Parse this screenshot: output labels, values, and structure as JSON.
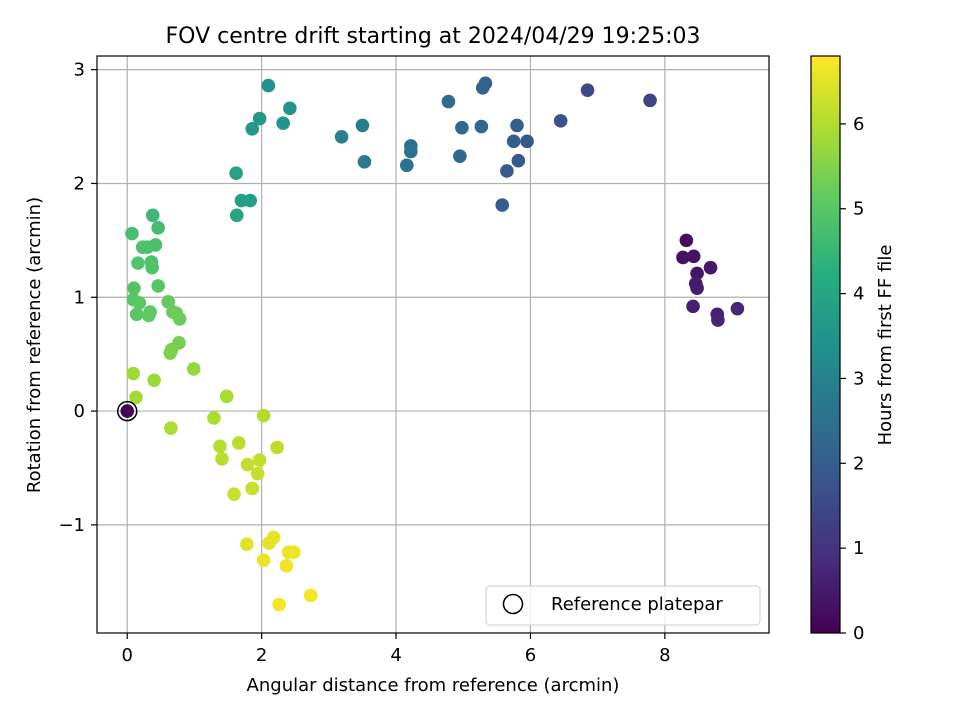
{
  "chart_data": {
    "type": "scatter",
    "title": "FOV centre drift starting at 2024/04/29 19:25:03",
    "xlabel": "Angular distance from reference (arcmin)",
    "ylabel": "Rotation from reference (arcmin)",
    "xlim": [
      -0.45,
      9.55
    ],
    "ylim": [
      -1.95,
      3.12
    ],
    "xticks": [
      0,
      2,
      4,
      6,
      8
    ],
    "xtick_labels": [
      "0",
      "2",
      "4",
      "6",
      "8"
    ],
    "yticks": [
      -1,
      0,
      1,
      2,
      3
    ],
    "ytick_labels": [
      "−1",
      "0",
      "1",
      "2",
      "3"
    ],
    "grid": true,
    "legend": {
      "placement": "lower-right",
      "entries": [
        "Reference platepar"
      ]
    },
    "colorbar": {
      "label": "Hours from first FF file",
      "range": [
        0,
        6.8
      ],
      "ticks": [
        0,
        1,
        2,
        3,
        4,
        5,
        6
      ],
      "tick_labels": [
        "0",
        "1",
        "2",
        "3",
        "4",
        "5",
        "6"
      ],
      "colormap": "viridis"
    },
    "reference_point": {
      "x": 0,
      "y": 0,
      "hours": 0.05
    },
    "points": [
      {
        "x": 8.32,
        "y": 1.5,
        "h": 0.25
      },
      {
        "x": 8.27,
        "y": 1.35,
        "h": 0.3
      },
      {
        "x": 8.43,
        "y": 1.36,
        "h": 0.35
      },
      {
        "x": 8.48,
        "y": 1.21,
        "h": 0.4
      },
      {
        "x": 8.68,
        "y": 1.26,
        "h": 0.45
      },
      {
        "x": 8.46,
        "y": 1.12,
        "h": 0.5
      },
      {
        "x": 8.48,
        "y": 1.08,
        "h": 0.55
      },
      {
        "x": 8.42,
        "y": 0.92,
        "h": 0.6
      },
      {
        "x": 8.78,
        "y": 0.85,
        "h": 0.65
      },
      {
        "x": 8.79,
        "y": 0.8,
        "h": 0.7
      },
      {
        "x": 9.08,
        "y": 0.9,
        "h": 0.75
      },
      {
        "x": 7.78,
        "y": 2.73,
        "h": 1.35
      },
      {
        "x": 6.85,
        "y": 2.82,
        "h": 1.5
      },
      {
        "x": 6.45,
        "y": 2.55,
        "h": 1.7
      },
      {
        "x": 5.95,
        "y": 2.37,
        "h": 1.85
      },
      {
        "x": 5.82,
        "y": 2.2,
        "h": 1.9
      },
      {
        "x": 5.65,
        "y": 2.11,
        "h": 1.95
      },
      {
        "x": 5.58,
        "y": 1.81,
        "h": 2.0
      },
      {
        "x": 5.75,
        "y": 2.37,
        "h": 2.05
      },
      {
        "x": 5.8,
        "y": 2.51,
        "h": 2.1
      },
      {
        "x": 5.33,
        "y": 2.88,
        "h": 2.15
      },
      {
        "x": 5.29,
        "y": 2.84,
        "h": 2.2
      },
      {
        "x": 5.27,
        "y": 2.5,
        "h": 2.25
      },
      {
        "x": 4.98,
        "y": 2.49,
        "h": 2.3
      },
      {
        "x": 4.95,
        "y": 2.24,
        "h": 2.35
      },
      {
        "x": 4.78,
        "y": 2.72,
        "h": 2.4
      },
      {
        "x": 4.22,
        "y": 2.33,
        "h": 2.5
      },
      {
        "x": 4.22,
        "y": 2.28,
        "h": 2.55
      },
      {
        "x": 4.16,
        "y": 2.16,
        "h": 2.6
      },
      {
        "x": 3.53,
        "y": 2.19,
        "h": 2.8
      },
      {
        "x": 3.5,
        "y": 2.51,
        "h": 2.85
      },
      {
        "x": 3.19,
        "y": 2.41,
        "h": 2.95
      },
      {
        "x": 2.1,
        "y": 2.86,
        "h": 3.45
      },
      {
        "x": 2.42,
        "y": 2.66,
        "h": 3.5
      },
      {
        "x": 2.32,
        "y": 2.53,
        "h": 3.55
      },
      {
        "x": 1.97,
        "y": 2.57,
        "h": 3.6
      },
      {
        "x": 1.86,
        "y": 2.48,
        "h": 3.65
      },
      {
        "x": 1.83,
        "y": 1.85,
        "h": 3.8
      },
      {
        "x": 1.7,
        "y": 1.85,
        "h": 3.85
      },
      {
        "x": 1.62,
        "y": 2.09,
        "h": 3.9
      },
      {
        "x": 1.63,
        "y": 1.72,
        "h": 3.95
      },
      {
        "x": 0.38,
        "y": 1.72,
        "h": 4.6
      },
      {
        "x": 0.46,
        "y": 1.61,
        "h": 4.7
      },
      {
        "x": 0.07,
        "y": 1.56,
        "h": 4.75
      },
      {
        "x": 0.42,
        "y": 1.46,
        "h": 4.8
      },
      {
        "x": 0.3,
        "y": 1.44,
        "h": 4.8
      },
      {
        "x": 0.23,
        "y": 1.44,
        "h": 4.85
      },
      {
        "x": 0.36,
        "y": 1.31,
        "h": 4.85
      },
      {
        "x": 0.37,
        "y": 1.26,
        "h": 4.9
      },
      {
        "x": 0.16,
        "y": 1.3,
        "h": 4.9
      },
      {
        "x": 0.1,
        "y": 1.08,
        "h": 4.95
      },
      {
        "x": 0.46,
        "y": 1.1,
        "h": 5.0
      },
      {
        "x": 0.09,
        "y": 0.98,
        "h": 5.0
      },
      {
        "x": 0.18,
        "y": 0.95,
        "h": 5.05
      },
      {
        "x": 0.14,
        "y": 0.85,
        "h": 5.05
      },
      {
        "x": 0.34,
        "y": 0.87,
        "h": 5.1
      },
      {
        "x": 0.32,
        "y": 0.84,
        "h": 5.1
      },
      {
        "x": 0.61,
        "y": 0.96,
        "h": 5.15
      },
      {
        "x": 0.68,
        "y": 0.87,
        "h": 5.2
      },
      {
        "x": 0.78,
        "y": 0.81,
        "h": 5.25
      },
      {
        "x": 0.73,
        "y": 0.86,
        "h": 5.25
      },
      {
        "x": 0.77,
        "y": 0.6,
        "h": 5.35
      },
      {
        "x": 0.66,
        "y": 0.54,
        "h": 5.4
      },
      {
        "x": 0.64,
        "y": 0.51,
        "h": 5.45
      },
      {
        "x": 0.99,
        "y": 0.37,
        "h": 5.7
      },
      {
        "x": 0.4,
        "y": 0.27,
        "h": 5.75
      },
      {
        "x": 0.09,
        "y": 0.33,
        "h": 5.8
      },
      {
        "x": 0.13,
        "y": 0.12,
        "h": 5.85
      },
      {
        "x": 1.48,
        "y": 0.13,
        "h": 5.9
      },
      {
        "x": 1.29,
        "y": -0.06,
        "h": 5.95
      },
      {
        "x": 0.65,
        "y": -0.15,
        "h": 5.95
      },
      {
        "x": 2.03,
        "y": -0.04,
        "h": 6.0
      },
      {
        "x": 1.38,
        "y": -0.31,
        "h": 6.05
      },
      {
        "x": 1.41,
        "y": -0.42,
        "h": 6.05
      },
      {
        "x": 1.66,
        "y": -0.28,
        "h": 6.1
      },
      {
        "x": 2.23,
        "y": -0.32,
        "h": 6.1
      },
      {
        "x": 1.97,
        "y": -0.43,
        "h": 6.15
      },
      {
        "x": 1.79,
        "y": -0.47,
        "h": 6.15
      },
      {
        "x": 1.94,
        "y": -0.55,
        "h": 6.2
      },
      {
        "x": 1.86,
        "y": -0.68,
        "h": 6.2
      },
      {
        "x": 1.59,
        "y": -0.73,
        "h": 6.25
      },
      {
        "x": 1.78,
        "y": -1.17,
        "h": 6.5
      },
      {
        "x": 2.18,
        "y": -1.11,
        "h": 6.55
      },
      {
        "x": 2.11,
        "y": -1.16,
        "h": 6.55
      },
      {
        "x": 2.03,
        "y": -1.31,
        "h": 6.6
      },
      {
        "x": 2.4,
        "y": -1.24,
        "h": 6.6
      },
      {
        "x": 2.48,
        "y": -1.24,
        "h": 6.65
      },
      {
        "x": 2.37,
        "y": -1.36,
        "h": 6.65
      },
      {
        "x": 2.26,
        "y": -1.7,
        "h": 6.7
      },
      {
        "x": 2.73,
        "y": -1.62,
        "h": 6.7
      }
    ]
  }
}
